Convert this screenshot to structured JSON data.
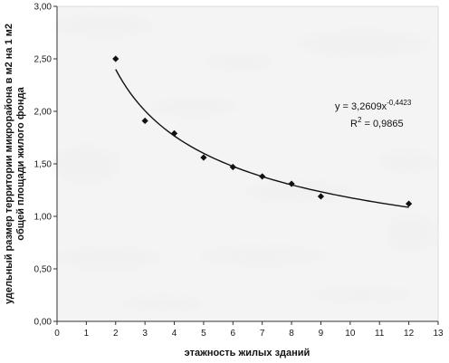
{
  "chart_data": {
    "type": "scatter",
    "xlabel": "этажность жилых зданий",
    "ylabel": [
      "удельный размер территории микрорайона в м2 на 1 м2",
      "общей площади жилого фонда"
    ],
    "xlim": [
      0,
      13
    ],
    "ylim": [
      0,
      3
    ],
    "x_ticks": [
      "0",
      "1",
      "2",
      "3",
      "4",
      "5",
      "6",
      "7",
      "8",
      "9",
      "10",
      "11",
      "12",
      "13"
    ],
    "y_ticks": [
      "0,00",
      "0,50",
      "1,00",
      "1,50",
      "2,00",
      "2,50",
      "3,00"
    ],
    "grid": false,
    "series": [
      {
        "marker": "diamond",
        "x": [
          2,
          3,
          4,
          5,
          6,
          7,
          8,
          9,
          12
        ],
        "y": [
          2.5,
          1.91,
          1.79,
          1.56,
          1.47,
          1.38,
          1.31,
          1.19,
          1.12
        ]
      }
    ],
    "trendline": {
      "kind": "power",
      "a": 3.2609,
      "b": -0.4423,
      "x_range": [
        2,
        12
      ]
    },
    "annotations": {
      "equation_base": "y = 3,2609x",
      "equation_exp": "-0,4423",
      "r2_base": "R",
      "r2_sup": "2",
      "r2_value": " = 0,9865"
    },
    "colors": {
      "marker": "#111111",
      "line": "#111111",
      "axis": "#333333"
    }
  }
}
